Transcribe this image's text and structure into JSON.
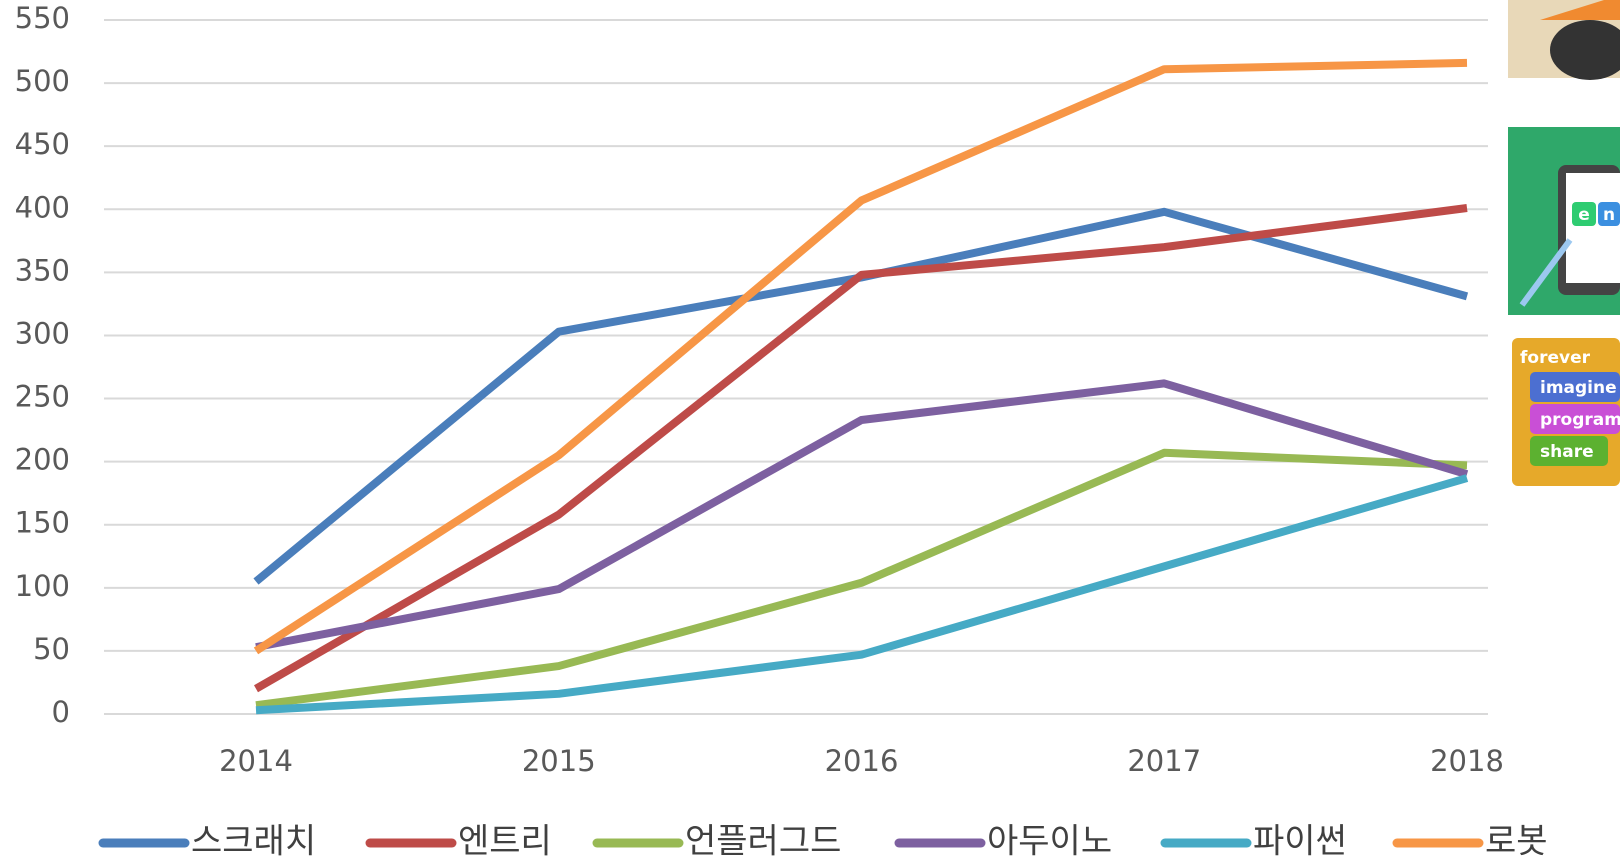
{
  "chart_data": {
    "type": "line",
    "categories": [
      "2014",
      "2015",
      "2016",
      "2017",
      "2018"
    ],
    "series": [
      {
        "name": "스크래치",
        "color": "#4a7ebb",
        "values": [
          105,
          303,
          346,
          398,
          331
        ]
      },
      {
        "name": "엔트리",
        "color": "#be4b48",
        "values": [
          20,
          158,
          348,
          370,
          401
        ]
      },
      {
        "name": "언플러그드",
        "color": "#98b954",
        "values": [
          7,
          38,
          104,
          207,
          197
        ]
      },
      {
        "name": "아두이노",
        "color": "#7d60a0",
        "values": [
          53,
          99,
          233,
          262,
          190
        ]
      },
      {
        "name": "파이썬",
        "color": "#46aac5",
        "values": [
          3,
          16,
          47,
          117,
          187
        ]
      },
      {
        "name": "로봇",
        "color": "#f79646",
        "values": [
          50,
          205,
          407,
          511,
          516
        ]
      }
    ],
    "ylim": [
      0,
      550
    ],
    "yticks": [
      0,
      50,
      100,
      150,
      200,
      250,
      300,
      350,
      400,
      450,
      500,
      550
    ],
    "grid": true,
    "legend": "bottom",
    "annotations": [
      "e",
      "n",
      "forever",
      "imagine",
      "program",
      "share"
    ]
  }
}
